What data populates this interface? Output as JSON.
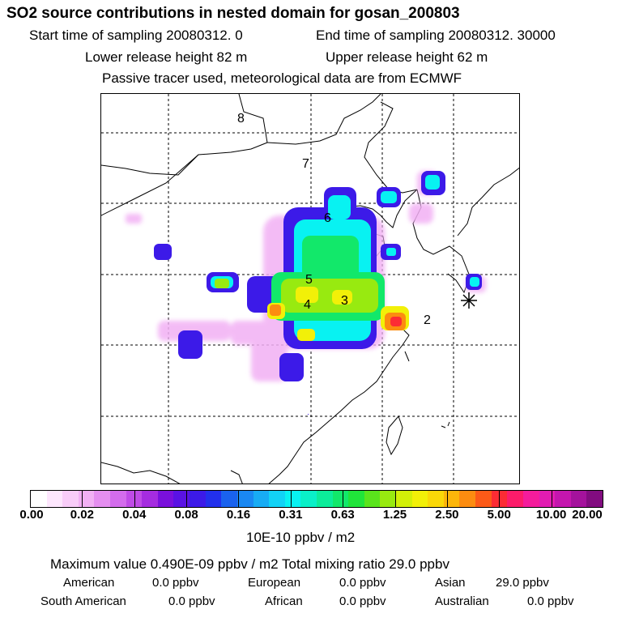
{
  "header": {
    "title": "SO2 source contributions in nested domain for gosan_200803",
    "start_label": "Start time of sampling 20080312.     0",
    "end_label": "End time of sampling 20080312. 30000",
    "lower_label": "Lower release height   82 m",
    "upper_label": "Upper release height   62 m",
    "note": "Passive tracer used, meteorological data are from ECMWF"
  },
  "map": {
    "region_labels": [
      {
        "id": "8",
        "text": "8"
      },
      {
        "id": "7",
        "text": "7"
      },
      {
        "id": "6",
        "text": "6"
      },
      {
        "id": "5",
        "text": "5"
      },
      {
        "id": "4",
        "text": "4"
      },
      {
        "id": "3",
        "text": "3"
      },
      {
        "id": "2",
        "text": "2"
      }
    ],
    "receptor_marker": "receptor-star-icon"
  },
  "colorbar": {
    "colors": [
      "#ffffff",
      "#fde6fd",
      "#f8ccf8",
      "#f2b0f4",
      "#e58ef0",
      "#d36cec",
      "#bf4be6",
      "#a52ce0",
      "#7a10dc",
      "#5a12e4",
      "#3c1ae8",
      "#2230ec",
      "#1a62ee",
      "#1a88f2",
      "#18acf4",
      "#12d2f6",
      "#08f2f2",
      "#0af0c8",
      "#0cec9a",
      "#12e86a",
      "#20e43a",
      "#5ae41c",
      "#98ea10",
      "#d2f008",
      "#f2f008",
      "#fad808",
      "#fcb60a",
      "#fc8c10",
      "#fc5a18",
      "#fc2c34",
      "#fc1c6a",
      "#f41c9c",
      "#e21cb2",
      "#c416ae",
      "#a4129c",
      "#820c80"
    ],
    "tick_labels": [
      "0.00",
      "0.02",
      "0.04",
      "0.08",
      "0.16",
      "0.31",
      "0.63",
      "1.25",
      "2.50",
      "5.00",
      "10.00",
      "20.00"
    ],
    "unit": "10E-10 ppbv / m2"
  },
  "summary": {
    "max_line": "Maximum value  0.490E-09 ppbv / m2     Total mixing ratio       29.0 ppbv",
    "regions": [
      {
        "label": "American",
        "value": "0.0 ppbv"
      },
      {
        "label": "European",
        "value": "0.0 ppbv"
      },
      {
        "label": "Asian",
        "value": "29.0 ppbv"
      },
      {
        "label": "South American",
        "value": "0.0 ppbv"
      },
      {
        "label": "African",
        "value": "0.0 ppbv"
      },
      {
        "label": "Australian",
        "value": "0.0 ppbv"
      }
    ]
  }
}
